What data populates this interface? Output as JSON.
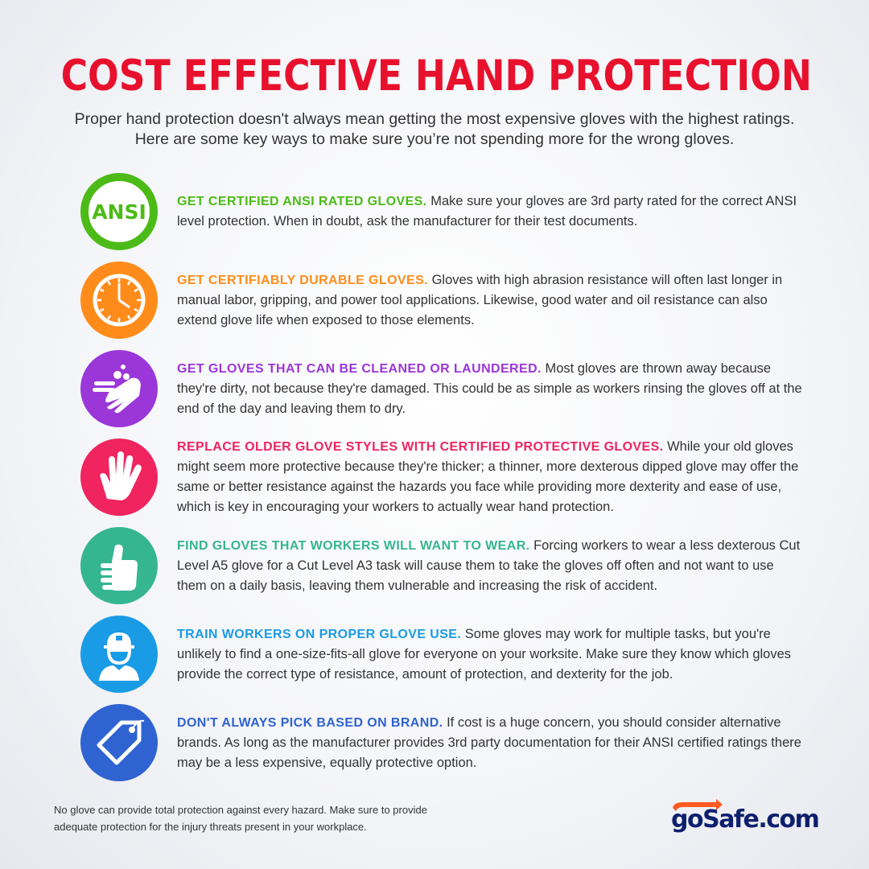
{
  "title": "COST EFFECTIVE HAND PROTECTION",
  "intro": "Proper hand protection doesn't always mean getting the most expensive gloves with the highest ratings. Here are some key ways to make sure you’re not spending more for the wrong gloves.",
  "items": [
    {
      "heading": "GET CERTIFIED ANSI RATED GLOVES.",
      "body": " Make sure your gloves are 3rd party rated for the correct ANSI level protection. When in doubt, ask the manufacturer for their test documents.",
      "color": "#4cbb17",
      "icon": "ansi-icon",
      "icon_text": "ANSI"
    },
    {
      "heading": "GET CERTIFIABLY DURABLE GLOVES.",
      "body": " Gloves with high abrasion resistance will often last longer in manual labor, gripping, and power tool applications. Likewise, good water and oil resistance can also extend glove life when exposed to those elements.",
      "color": "#ff8c1a",
      "icon": "clock-icon"
    },
    {
      "heading": "GET GLOVES THAT CAN BE CLEANED OR LAUNDERED.",
      "body": " Most gloves are thrown away because they're dirty, not because they're damaged. This could be as simple as workers rinsing the gloves off at the end of the day and leaving them to dry.",
      "color": "#9b36d9",
      "icon": "washing-hands-icon"
    },
    {
      "heading": "REPLACE OLDER GLOVE STYLES WITH CERTIFIED PROTECTIVE GLOVES.",
      "body": " While your old gloves might seem more protective because they're thicker; a thinner, more dexterous dipped glove may offer the same or better resistance against the hazards you face while providing more dexterity and ease of use, which is key in encouraging your workers to actually wear hand protection.",
      "color": "#f0245f",
      "icon": "hand-icon"
    },
    {
      "heading": "FIND GLOVES THAT WORKERS WILL WANT TO WEAR.",
      "body": " Forcing workers to wear a less dexterous Cut Level A5 glove for a Cut Level A3 task will cause them to take the gloves off often and not want to use them on a daily basis, leaving them vulnerable and increasing the risk of accident.",
      "color": "#36b591",
      "icon": "thumbs-up-icon"
    },
    {
      "heading": "TRAIN WORKERS ON PROPER GLOVE USE.",
      "body": " Some gloves may work for multiple tasks, but you're unlikely to find a one-size-fits-all glove for everyone on your worksite. Make sure they know which gloves provide the correct type of resistance, amount of protection, and dexterity for the job.",
      "color": "#1a9be6",
      "icon": "worker-icon"
    },
    {
      "heading": "DON'T ALWAYS PICK BASED ON BRAND.",
      "body": " If cost is a huge concern, you should consider alternative brands. As long as the manufacturer provides 3rd party documentation for their ANSI certified ratings there may be a less expensive, equally protective option.",
      "color": "#2f63d1",
      "icon": "price-tag-icon"
    }
  ],
  "footer": "No glove can provide total protection against every hazard. Make sure to provide adequate protection for the injury threats present in your workplace.",
  "logo": {
    "text": "goSafe.com",
    "color": "#0d1f6e",
    "arrow_color": "#ff5a1f"
  }
}
